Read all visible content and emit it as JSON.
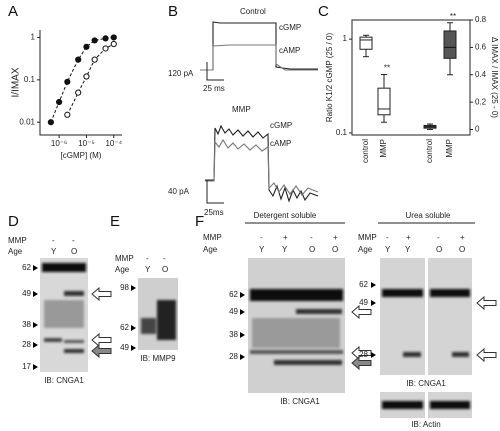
{
  "panel_labels": [
    "A",
    "B",
    "C",
    "D",
    "E",
    "F"
  ],
  "chart_data": [
    {
      "type": "line",
      "xlabel": "[cGMP] (M)",
      "ylabel": "I/IMAX",
      "log_x": true,
      "log_y": true,
      "xlim": [
        2e-07,
        0.0002
      ],
      "ylim": [
        0.005,
        1.5
      ],
      "xticks": [
        {
          "value": 1e-06,
          "label": "10⁻⁶"
        },
        {
          "value": 1e-05,
          "label": "10⁻⁵"
        },
        {
          "value": 0.0001,
          "label": "10⁻⁴"
        }
      ],
      "yticks": [
        0.01,
        0.1,
        1
      ],
      "line_style": "dashed",
      "series": [
        {
          "color": "#111111",
          "marker": "filled",
          "x": [
            5e-07,
            1e-06,
            2e-06,
            5e-06,
            1e-05,
            2e-05,
            5e-05,
            0.0001
          ],
          "values": [
            0.01,
            0.03,
            0.09,
            0.3,
            0.6,
            0.85,
            0.95,
            1.0
          ]
        },
        {
          "color": "#111111",
          "marker": "open",
          "x": [
            2e-06,
            5e-06,
            1e-05,
            2e-05,
            5e-05,
            0.0001
          ],
          "values": [
            0.015,
            0.05,
            0.12,
            0.3,
            0.55,
            0.7
          ]
        }
      ]
    },
    {
      "type": "box",
      "ylabel": "Ratio K1/2 cGMP (25 / 0)",
      "y2label": "Δ IMAX / IMAX (25 - 0)",
      "log_y": true,
      "ylim": [
        0.095,
        1.6
      ],
      "yticks": [
        0.1,
        1
      ],
      "y2lim": [
        -0.04,
        0.8
      ],
      "y2ticks": [
        0,
        0.2,
        0.4,
        0.6,
        0.8
      ],
      "categories": [
        "control",
        "MMP",
        "control",
        "MMP"
      ],
      "annotations": [
        "**",
        "**"
      ],
      "series": [
        {
          "color": "#ffffff",
          "axis": "y",
          "boxes": [
            {
              "min": 0.65,
              "q1": 0.78,
              "median": 0.98,
              "q3": 1.05,
              "max": 1.1
            },
            {
              "min": 0.13,
              "q1": 0.156,
              "median": 0.18,
              "q3": 0.3,
              "max": 0.42
            }
          ]
        },
        {
          "color": "#555555",
          "axis": "y2",
          "boxes": [
            {
              "min": 0.0,
              "q1": 0.01,
              "median": 0.02,
              "q3": 0.03,
              "max": 0.04
            },
            {
              "min": 0.4,
              "q1": 0.52,
              "median": 0.6,
              "q3": 0.72,
              "max": 0.78
            }
          ]
        }
      ]
    }
  ],
  "panel_b": {
    "control": {
      "title": "Control",
      "traces": [
        "cGMP",
        "cAMP"
      ],
      "scale_current": "120 pA",
      "scale_time": "25 ms"
    },
    "mmp": {
      "title": "MMP",
      "traces": [
        "cGMP",
        "cAMP"
      ],
      "scale_current": "40 pA",
      "scale_time": "25ms"
    }
  },
  "panel_d": {
    "rows": [
      {
        "label": "MMP",
        "lanes": [
          "-",
          "-"
        ]
      },
      {
        "label": "Age",
        "lanes": [
          "Y",
          "O"
        ]
      }
    ],
    "markers": [
      62,
      49,
      38,
      28,
      17
    ],
    "blot": "IB: CNGA1"
  },
  "panel_e": {
    "rows": [
      {
        "label": "MMP",
        "lanes": [
          "-",
          "-"
        ]
      },
      {
        "label": "Age",
        "lanes": [
          "Y",
          "O"
        ]
      }
    ],
    "markers": [
      98,
      62,
      49
    ],
    "blot": "IB: MMP9"
  },
  "panel_f": {
    "detergent": {
      "title": "Detergent soluble",
      "rows": [
        {
          "label": "MMP",
          "lanes": [
            "-",
            "+",
            "-",
            "+"
          ]
        },
        {
          "label": "Age",
          "lanes": [
            "Y",
            "Y",
            "O",
            "O"
          ]
        }
      ],
      "markers": [
        62,
        49,
        38,
        28
      ],
      "blot": "IB: CNGA1"
    },
    "urea": {
      "title": "Urea soluble",
      "rows": [
        {
          "label": "MMP",
          "lanes": [
            "-",
            "+",
            "-",
            "+"
          ]
        },
        {
          "label": "Age",
          "lanes": [
            "Y",
            "Y",
            "O",
            "O"
          ]
        }
      ],
      "markers": [
        62,
        49,
        28
      ],
      "blot": "IB: CNGA1",
      "control_blot": "IB: Actin"
    }
  }
}
